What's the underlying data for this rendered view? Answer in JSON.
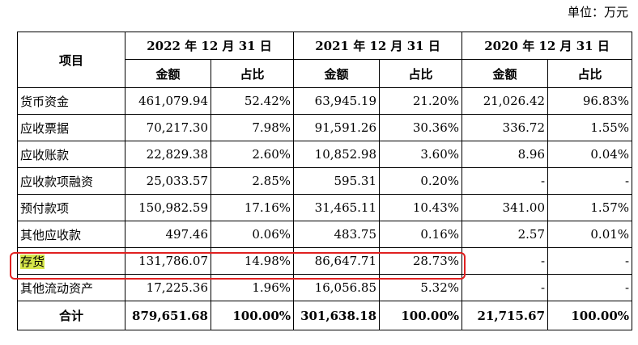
{
  "unit_label": "单位：万元",
  "header": {
    "item": "项目",
    "periods": [
      "2022 年 12 月 31 日",
      "2021 年 12 月 31 日",
      "2020 年 12 月 31 日"
    ],
    "amount": "金额",
    "ratio": "占比"
  },
  "rows": [
    {
      "label": "货币资金",
      "v": [
        "461,079.94",
        "52.42%",
        "63,945.19",
        "21.20%",
        "21,026.42",
        "96.83%"
      ]
    },
    {
      "label": "应收票据",
      "v": [
        "70,217.30",
        "7.98%",
        "91,591.26",
        "30.36%",
        "336.72",
        "1.55%"
      ]
    },
    {
      "label": "应收账款",
      "v": [
        "22,829.38",
        "2.60%",
        "10,852.98",
        "3.60%",
        "8.96",
        "0.04%"
      ]
    },
    {
      "label": "应收款项融资",
      "v": [
        "25,033.57",
        "2.85%",
        "595.31",
        "0.20%",
        "-",
        "-"
      ]
    },
    {
      "label": "预付款项",
      "v": [
        "150,982.59",
        "17.16%",
        "31,465.11",
        "10.43%",
        "341.00",
        "1.57%"
      ]
    },
    {
      "label": "其他应收款",
      "v": [
        "497.46",
        "0.06%",
        "483.75",
        "0.16%",
        "2.57",
        "0.01%"
      ]
    },
    {
      "label": "存货",
      "v": [
        "131,786.07",
        "14.98%",
        "86,647.71",
        "28.73%",
        "-",
        "-"
      ]
    },
    {
      "label": "其他流动资产",
      "v": [
        "17,225.36",
        "1.96%",
        "16,056.85",
        "5.32%",
        "-",
        "-"
      ]
    }
  ],
  "total": {
    "label": "合计",
    "v": [
      "879,651.68",
      "100.00%",
      "301,638.18",
      "100.00%",
      "21,715.67",
      "100.00%"
    ]
  },
  "highlight_color": "#d6e64a",
  "frame_color": "#e02020"
}
